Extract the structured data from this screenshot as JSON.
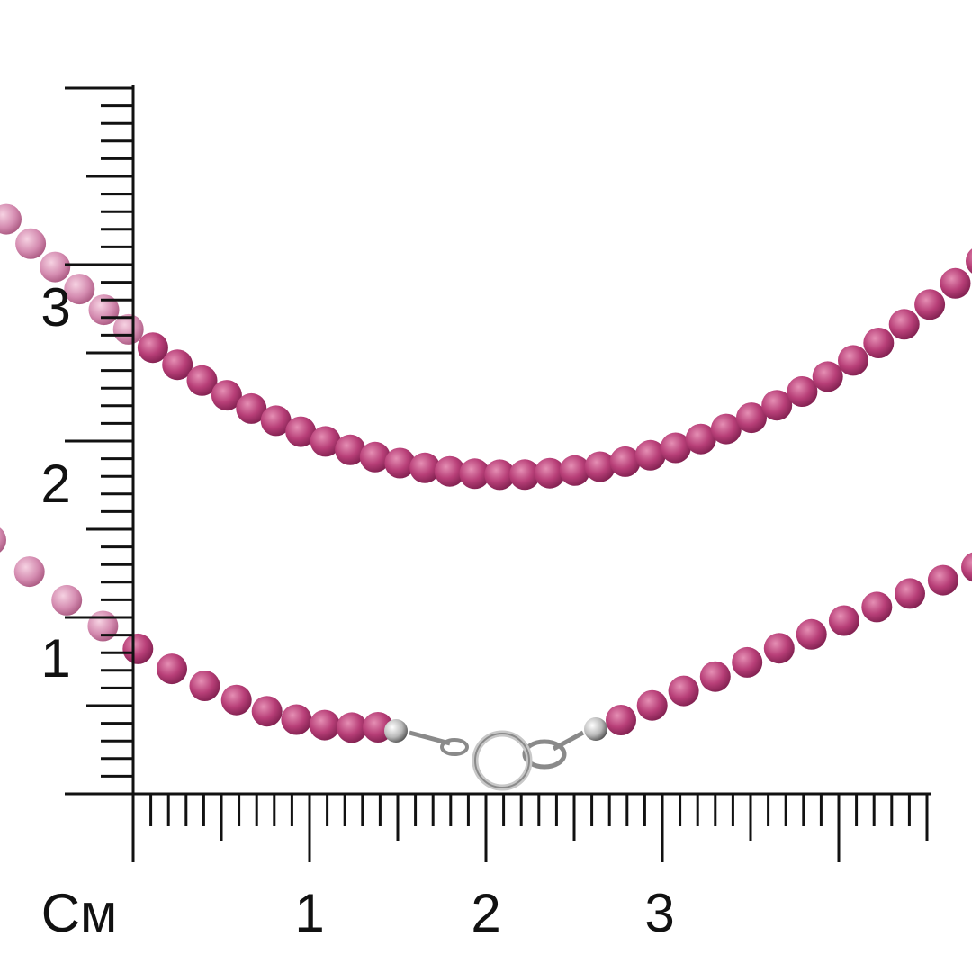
{
  "ruler": {
    "unit": "См",
    "x_labels": [
      "1",
      "2",
      "3"
    ],
    "y_labels": [
      "1",
      "2",
      "3"
    ]
  }
}
